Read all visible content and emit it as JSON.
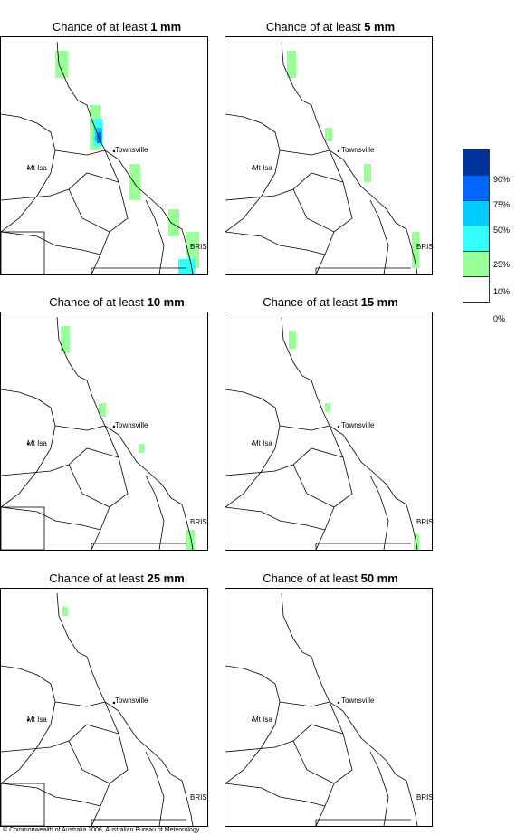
{
  "panels": [
    {
      "title_prefix": "Chance of at least ",
      "title_amount": "1 mm"
    },
    {
      "title_prefix": "Chance of at least ",
      "title_amount": "5 mm"
    },
    {
      "title_prefix": "Chance of at least ",
      "title_amount": "10 mm"
    },
    {
      "title_prefix": "Chance of at least ",
      "title_amount": "15 mm"
    },
    {
      "title_prefix": "Chance of at least ",
      "title_amount": "25 mm"
    },
    {
      "title_prefix": "Chance of at least ",
      "title_amount": "50 mm"
    }
  ],
  "places": {
    "townsville": "Townsville",
    "mt_isa": "Mt Isa",
    "bris": "BRIS"
  },
  "legend": {
    "labels": [
      "90%",
      "75%",
      "50%",
      "25%",
      "10%",
      "0%"
    ],
    "colors": [
      "#003399",
      "#0066ff",
      "#00ccff",
      "#33ffff",
      "#99ff99",
      "#ffffff"
    ]
  },
  "copyright": "© Commonwealth of Australia 2006, Australian Bureau of Meteorology"
}
